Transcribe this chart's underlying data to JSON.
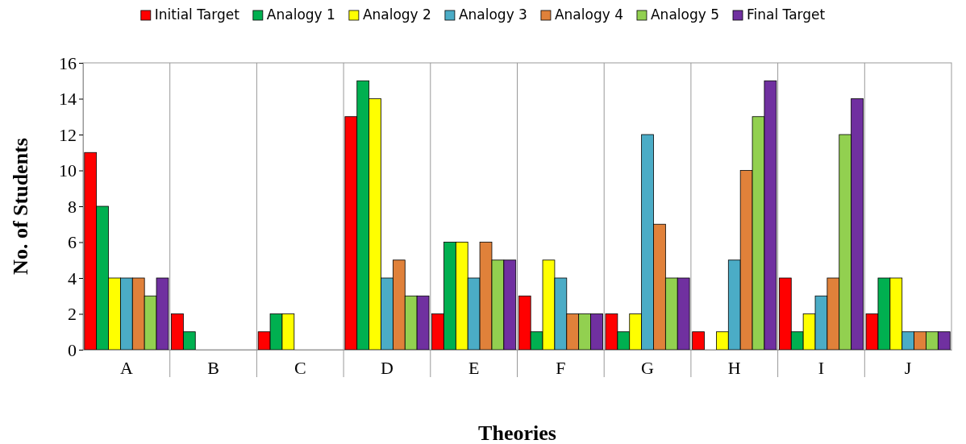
{
  "chart_data": {
    "type": "bar",
    "xlabel": "Theories",
    "ylabel": "No. of Students",
    "categories": [
      "A",
      "B",
      "C",
      "D",
      "E",
      "F",
      "G",
      "H",
      "I",
      "J"
    ],
    "ylim": [
      0,
      16
    ],
    "yticks": [
      0,
      2,
      4,
      6,
      8,
      10,
      12,
      14,
      16
    ],
    "grid": "x",
    "legend": "top",
    "series": [
      {
        "name": "Initial Target",
        "color": "#ff0000",
        "values": [
          11,
          2,
          1,
          13,
          2,
          3,
          2,
          1,
          4,
          2
        ]
      },
      {
        "name": "Analogy 1",
        "color": "#00b050",
        "values": [
          8,
          1,
          2,
          15,
          6,
          1,
          1,
          0,
          1,
          4
        ]
      },
      {
        "name": "Analogy 2",
        "color": "#ffff00",
        "values": [
          4,
          0,
          2,
          14,
          6,
          5,
          2,
          1,
          2,
          4
        ]
      },
      {
        "name": "Analogy 3",
        "color": "#4bacc6",
        "values": [
          4,
          0,
          0,
          4,
          4,
          4,
          12,
          5,
          3,
          1
        ]
      },
      {
        "name": "Analogy 4",
        "color": "#e0813a",
        "values": [
          4,
          0,
          0,
          5,
          6,
          2,
          7,
          10,
          4,
          1
        ]
      },
      {
        "name": "Analogy 5",
        "color": "#92d050",
        "values": [
          3,
          0,
          0,
          3,
          5,
          2,
          4,
          13,
          12,
          1
        ]
      },
      {
        "name": "Final Target",
        "color": "#7030a0",
        "values": [
          4,
          0,
          0,
          3,
          5,
          2,
          4,
          15,
          14,
          1
        ]
      }
    ]
  }
}
